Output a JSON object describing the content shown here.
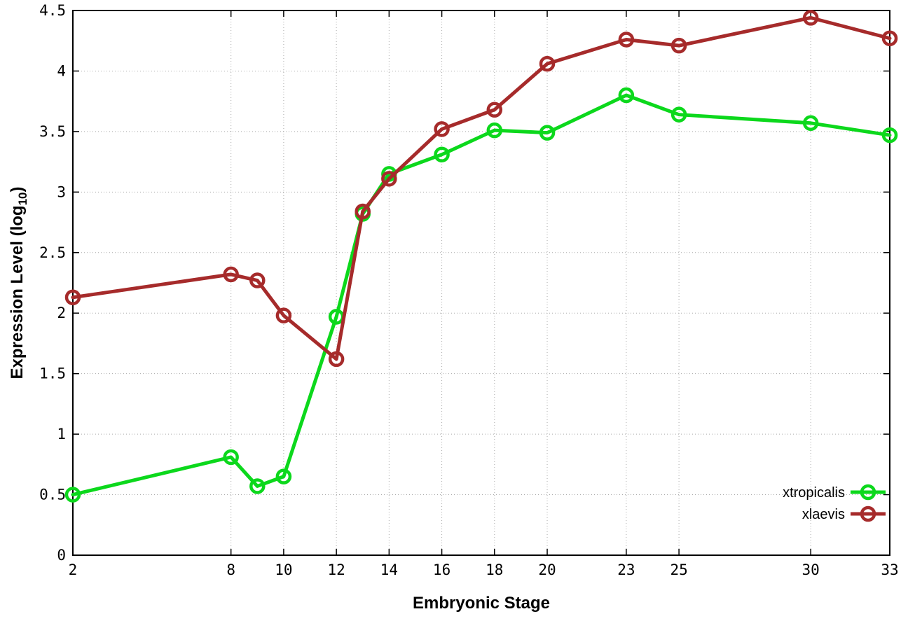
{
  "chart_data": {
    "type": "line",
    "title": "",
    "xlabel": "Embryonic Stage",
    "ylabel": "Expression Level (log10)",
    "ylabel_parts": {
      "main": "Expression Level (log",
      "sub": "10",
      "end": ")"
    },
    "x": [
      2,
      8,
      9,
      10,
      12,
      13,
      14,
      16,
      18,
      20,
      23,
      25,
      30,
      33
    ],
    "xlim": [
      2,
      33
    ],
    "ylim": [
      0,
      4.5
    ],
    "x_ticks": [
      2,
      8,
      10,
      12,
      14,
      16,
      18,
      20,
      23,
      25,
      30,
      33
    ],
    "x_tick_labels": [
      "2",
      "8",
      "10",
      "12",
      "14",
      "16",
      "18",
      "20",
      "23",
      "25",
      "30",
      "33"
    ],
    "y_ticks": [
      0,
      0.5,
      1,
      1.5,
      2,
      2.5,
      3,
      3.5,
      4,
      4.5
    ],
    "y_tick_labels": [
      "0",
      "0.5",
      "1",
      "1.5",
      "2",
      "2.5",
      "3",
      "3.5",
      "4",
      "4.5"
    ],
    "grid": true,
    "legend_position": "bottom-right",
    "series": [
      {
        "name": "xtropicalis",
        "color": "#0cd81c",
        "values": [
          0.5,
          0.81,
          0.57,
          0.65,
          1.97,
          2.82,
          3.15,
          3.31,
          3.51,
          3.49,
          3.8,
          3.64,
          3.57,
          3.47
        ]
      },
      {
        "name": "xlaevis",
        "color": "#a62b2b",
        "values": [
          2.13,
          2.32,
          2.27,
          1.98,
          1.62,
          2.84,
          3.11,
          3.52,
          3.68,
          4.06,
          4.26,
          4.21,
          4.44,
          4.27
        ]
      }
    ],
    "colors": {
      "background": "#ffffff",
      "axis": "#000000",
      "grid": "#aaaaaa",
      "text": "#000000"
    }
  }
}
